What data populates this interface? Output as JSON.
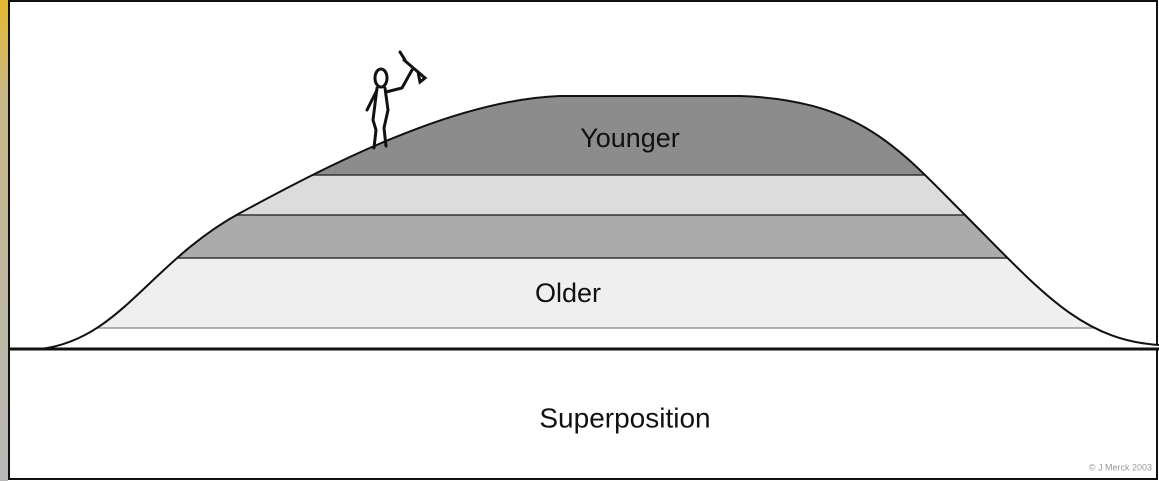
{
  "labels": {
    "top_layer": "Younger",
    "bottom_layer": "Older"
  },
  "caption": "Superposition",
  "credit": "© J Merck 2003"
}
